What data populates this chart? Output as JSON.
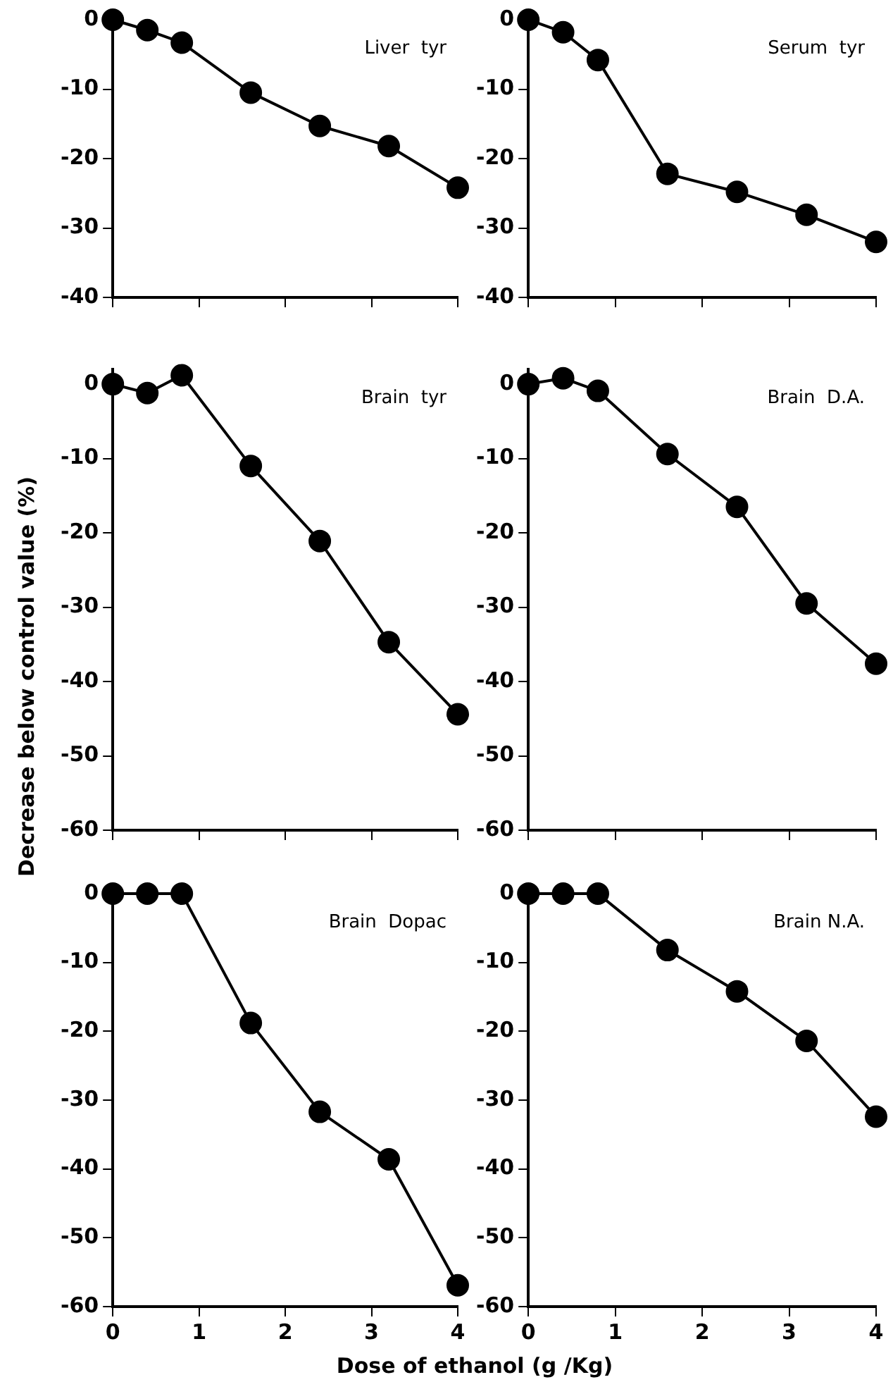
{
  "chart_data": [
    {
      "type": "line",
      "x": [
        0,
        0.4,
        0.8,
        1.6,
        2.4,
        3.2,
        4
      ],
      "series": [
        {
          "color": "#000000",
          "values": [
            0,
            -1.5,
            -3.3,
            -10.5,
            -15.3,
            -18.2,
            -24.2
          ]
        }
      ],
      "xlim": [
        0,
        4
      ],
      "xticks": [
        0,
        1,
        2,
        3,
        4
      ],
      "ylim": [
        -40,
        0
      ],
      "yticks": [
        -40,
        -30,
        -20,
        -10,
        0
      ],
      "tick_labels": "y",
      "marker": "circle",
      "line_style": "solid",
      "annotations": [
        "Liver  tyr"
      ]
    },
    {
      "type": "line",
      "x": [
        0,
        0.4,
        0.8,
        1.6,
        2.4,
        3.2,
        4
      ],
      "series": [
        {
          "color": "#000000",
          "values": [
            0,
            -1.8,
            -5.8,
            -22.2,
            -24.8,
            -28.1,
            -32
          ]
        }
      ],
      "xlim": [
        0,
        4
      ],
      "xticks": [
        0,
        1,
        2,
        3,
        4
      ],
      "ylim": [
        -40,
        0
      ],
      "yticks": [
        -40,
        -30,
        -20,
        -10,
        0
      ],
      "tick_labels": "y",
      "marker": "circle",
      "line_style": "solid",
      "annotations": [
        "Serum  tyr"
      ]
    },
    {
      "type": "line",
      "x": [
        0,
        0.4,
        0.8,
        1.6,
        2.4,
        3.2,
        4
      ],
      "series": [
        {
          "color": "#000000",
          "values": [
            0,
            -1.2,
            1.2,
            -11,
            -21.1,
            -34.7,
            -44.4
          ]
        }
      ],
      "xlim": [
        0,
        4
      ],
      "xticks": [
        0,
        1,
        2,
        3,
        4
      ],
      "ylim": [
        -60,
        2
      ],
      "yticks": [
        -60,
        -50,
        -40,
        -30,
        -20,
        -10,
        0
      ],
      "tick_labels": "y",
      "marker": "circle",
      "line_style": "solid",
      "annotations": [
        "Brain  tyr"
      ],
      "ylabel": "Decrease below control value (%)"
    },
    {
      "type": "line",
      "x": [
        0,
        0.4,
        0.8,
        1.6,
        2.4,
        3.2,
        4
      ],
      "series": [
        {
          "color": "#000000",
          "values": [
            0,
            0.8,
            -0.9,
            -9.4,
            -16.5,
            -29.5,
            -37.6
          ]
        }
      ],
      "xlim": [
        0,
        4
      ],
      "xticks": [
        0,
        1,
        2,
        3,
        4
      ],
      "ylim": [
        -60,
        2
      ],
      "yticks": [
        -60,
        -50,
        -40,
        -30,
        -20,
        -10,
        0
      ],
      "tick_labels": "y",
      "marker": "circle",
      "line_style": "solid",
      "annotations": [
        "Brain  D.A."
      ]
    },
    {
      "type": "line",
      "x": [
        0,
        0.4,
        0.8,
        1.6,
        2.4,
        3.2,
        4
      ],
      "series": [
        {
          "color": "#000000",
          "values": [
            0,
            0,
            0,
            -18.8,
            -31.7,
            -38.6,
            -56.9
          ]
        }
      ],
      "xlim": [
        0,
        4
      ],
      "xticks": [
        0,
        1,
        2,
        3,
        4
      ],
      "ylim": [
        -60,
        0
      ],
      "yticks": [
        -60,
        -50,
        -40,
        -30,
        -20,
        -10,
        0
      ],
      "marker": "circle",
      "line_style": "solid",
      "annotations": [
        "Brain  Dopac"
      ],
      "xlabel": "Dose  of  ethanol (g /Kg)"
    },
    {
      "type": "line",
      "x": [
        0,
        0.4,
        0.8,
        1.6,
        2.4,
        3.2,
        4
      ],
      "series": [
        {
          "color": "#000000",
          "values": [
            0,
            0,
            0,
            -8.2,
            -14.2,
            -21.4,
            -32.4
          ]
        }
      ],
      "xlim": [
        0,
        4
      ],
      "xticks": [
        0,
        1,
        2,
        3,
        4
      ],
      "ylim": [
        -60,
        0
      ],
      "yticks": [
        -60,
        -50,
        -40,
        -30,
        -20,
        -10,
        0
      ],
      "marker": "circle",
      "line_style": "solid",
      "annotations": [
        "Brain N.A."
      ]
    }
  ]
}
